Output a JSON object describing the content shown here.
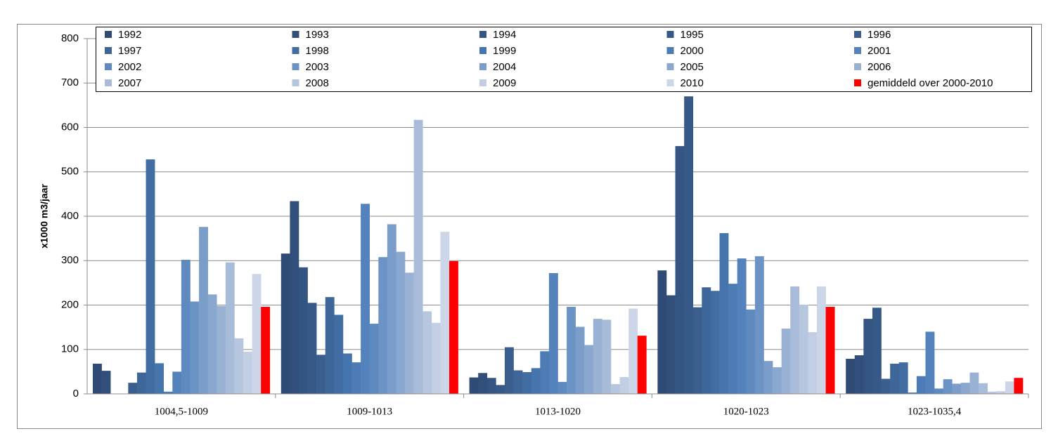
{
  "chart_data": {
    "type": "bar",
    "y_label": "x1000 m3/jaar",
    "categories": [
      "1004,5-1009",
      "1009-1013",
      "1013-1020",
      "1020-1023",
      "1023-1035,4"
    ],
    "ylim": [
      0,
      800
    ],
    "yticks": [
      0,
      100,
      200,
      300,
      400,
      500,
      600,
      700,
      800
    ],
    "grid": true,
    "series": [
      {
        "name": "1992",
        "color": "#2f4b75",
        "values": [
          68,
          316,
          37,
          278,
          79
        ]
      },
      {
        "name": "1993",
        "color": "#324f7b",
        "values": [
          52,
          434,
          47,
          222,
          87
        ]
      },
      {
        "name": "1994",
        "color": "#345482",
        "values": [
          0,
          285,
          36,
          558,
          169
        ]
      },
      {
        "name": "1995",
        "color": "#365988",
        "values": [
          0,
          205,
          20,
          670,
          194
        ]
      },
      {
        "name": "1996",
        "color": "#3a5f8f",
        "values": [
          25,
          88,
          105,
          195,
          34
        ]
      },
      {
        "name": "1997",
        "color": "#3e6699",
        "values": [
          48,
          218,
          53,
          240,
          68
        ]
      },
      {
        "name": "1998",
        "color": "#426da3",
        "values": [
          528,
          178,
          49,
          232,
          71
        ]
      },
      {
        "name": "1999",
        "color": "#4674ad",
        "values": [
          69,
          91,
          58,
          362,
          3
        ]
      },
      {
        "name": "2000",
        "color": "#4c7bb6",
        "values": [
          5,
          71,
          96,
          248,
          40
        ]
      },
      {
        "name": "2001",
        "color": "#5382bc",
        "values": [
          50,
          428,
          272,
          305,
          140
        ]
      },
      {
        "name": "2002",
        "color": "#5f8ac0",
        "values": [
          302,
          158,
          27,
          190,
          12
        ]
      },
      {
        "name": "2003",
        "color": "#6c93c5",
        "values": [
          208,
          308,
          196,
          310,
          33
        ]
      },
      {
        "name": "2004",
        "color": "#7b9dc9",
        "values": [
          376,
          382,
          151,
          74,
          23
        ]
      },
      {
        "name": "2005",
        "color": "#8aa7cf",
        "values": [
          224,
          320,
          110,
          60,
          25
        ]
      },
      {
        "name": "2006",
        "color": "#99b2d4",
        "values": [
          198,
          273,
          169,
          147,
          48
        ]
      },
      {
        "name": "2007",
        "color": "#a8bcd9",
        "values": [
          296,
          617,
          167,
          242,
          24
        ]
      },
      {
        "name": "2008",
        "color": "#b6c6de",
        "values": [
          125,
          186,
          22,
          201,
          5
        ]
      },
      {
        "name": "2009",
        "color": "#c1cee3",
        "values": [
          95,
          160,
          38,
          139,
          6
        ]
      },
      {
        "name": "2010",
        "color": "#ccd6e8",
        "values": [
          270,
          365,
          192,
          242,
          28
        ]
      },
      {
        "name": "gemiddeld over 2000-2010",
        "color": "#ff0000",
        "values": [
          196,
          299,
          131,
          196,
          36
        ]
      }
    ]
  }
}
